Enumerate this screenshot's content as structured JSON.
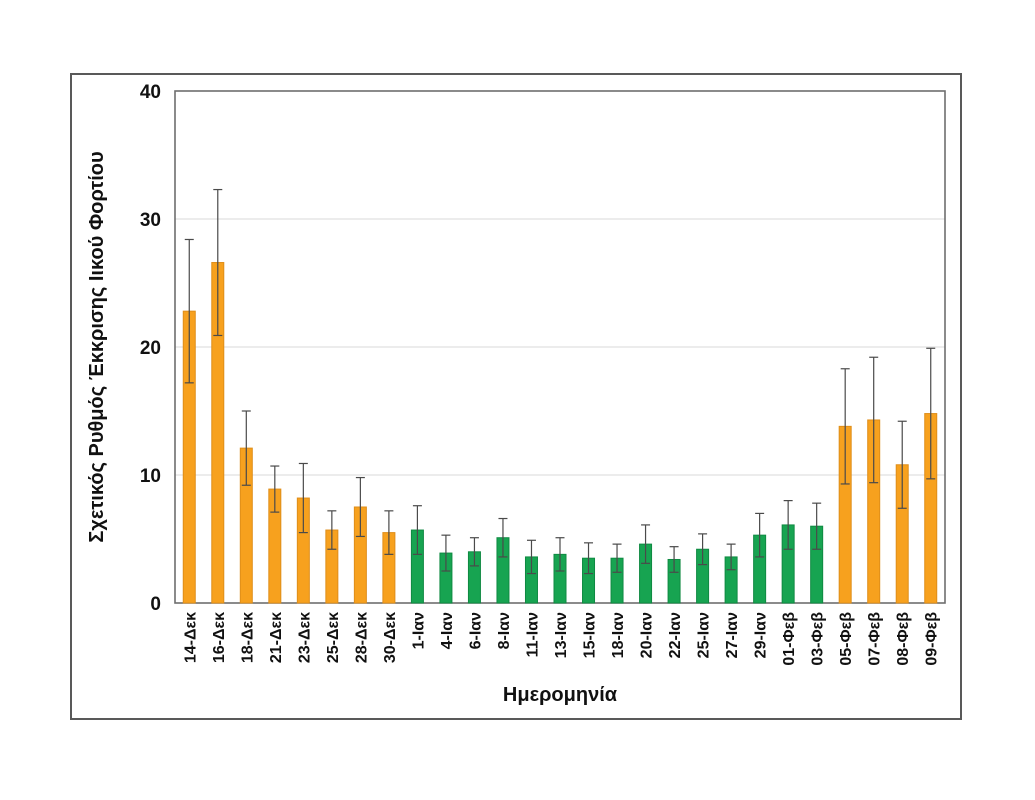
{
  "figure": {
    "background": "#ffffff",
    "frame_border_color": "#595959"
  },
  "chart_data": {
    "type": "bar",
    "title": "",
    "xlabel": "Ημερομηνία",
    "ylabel": "Σχετικός Ρυθμός Έκκρισης Ιικού Φορτίου",
    "ylim": [
      0,
      40
    ],
    "yticks": [
      0,
      10,
      20,
      30,
      40
    ],
    "grid": true,
    "gridlines_at": [
      10,
      20,
      30
    ],
    "legend_position": "none",
    "error_bars": true,
    "colors": {
      "orange": "#F7A11E",
      "orange_edge": "#DF8E1A",
      "green": "#17A451",
      "green_edge": "#0F8A42",
      "error": "#4A4A4A",
      "grid": "#D9D9D9",
      "axis": "#6E6E6E",
      "text": "#111111"
    },
    "points": [
      {
        "label": "14-Δεκ",
        "value": 22.8,
        "error": 5.6,
        "group": "orange"
      },
      {
        "label": "16-Δεκ",
        "value": 26.6,
        "error": 5.7,
        "group": "orange"
      },
      {
        "label": "18-Δεκ",
        "value": 12.1,
        "error": 2.9,
        "group": "orange"
      },
      {
        "label": "21-Δεκ",
        "value": 8.9,
        "error": 1.8,
        "group": "orange"
      },
      {
        "label": "23-Δεκ",
        "value": 8.2,
        "error": 2.7,
        "group": "orange"
      },
      {
        "label": "25-Δεκ",
        "value": 5.7,
        "error": 1.5,
        "group": "orange"
      },
      {
        "label": "28-Δεκ",
        "value": 7.5,
        "error": 2.3,
        "group": "orange"
      },
      {
        "label": "30-Δεκ",
        "value": 5.5,
        "error": 1.7,
        "group": "orange"
      },
      {
        "label": "1-Ιαν",
        "value": 5.7,
        "error": 1.9,
        "group": "green"
      },
      {
        "label": "4-Ιαν",
        "value": 3.9,
        "error": 1.4,
        "group": "green"
      },
      {
        "label": "6-Ιαν",
        "value": 4.0,
        "error": 1.1,
        "group": "green"
      },
      {
        "label": "8-Ιαν",
        "value": 5.1,
        "error": 1.5,
        "group": "green"
      },
      {
        "label": "11-Ιαν",
        "value": 3.6,
        "error": 1.3,
        "group": "green"
      },
      {
        "label": "13-Ιαν",
        "value": 3.8,
        "error": 1.3,
        "group": "green"
      },
      {
        "label": "15-Ιαν",
        "value": 3.5,
        "error": 1.2,
        "group": "green"
      },
      {
        "label": "18-Ιαν",
        "value": 3.5,
        "error": 1.1,
        "group": "green"
      },
      {
        "label": "20-Ιαν",
        "value": 4.6,
        "error": 1.5,
        "group": "green"
      },
      {
        "label": "22-Ιαν",
        "value": 3.4,
        "error": 1.0,
        "group": "green"
      },
      {
        "label": "25-Ιαν",
        "value": 4.2,
        "error": 1.2,
        "group": "green"
      },
      {
        "label": "27-Ιαν",
        "value": 3.6,
        "error": 1.0,
        "group": "green"
      },
      {
        "label": "29-Ιαν",
        "value": 5.3,
        "error": 1.7,
        "group": "green"
      },
      {
        "label": "01-Φεβ",
        "value": 6.1,
        "error": 1.9,
        "group": "green"
      },
      {
        "label": "03-Φεβ",
        "value": 6.0,
        "error": 1.8,
        "group": "green"
      },
      {
        "label": "05-Φεβ",
        "value": 13.8,
        "error": 4.5,
        "group": "orange"
      },
      {
        "label": "07-Φεβ",
        "value": 14.3,
        "error": 4.9,
        "group": "orange"
      },
      {
        "label": "08-Φεβ",
        "value": 10.8,
        "error": 3.4,
        "group": "orange"
      },
      {
        "label": "09-Φεβ",
        "value": 14.8,
        "error": 5.1,
        "group": "orange"
      }
    ]
  }
}
